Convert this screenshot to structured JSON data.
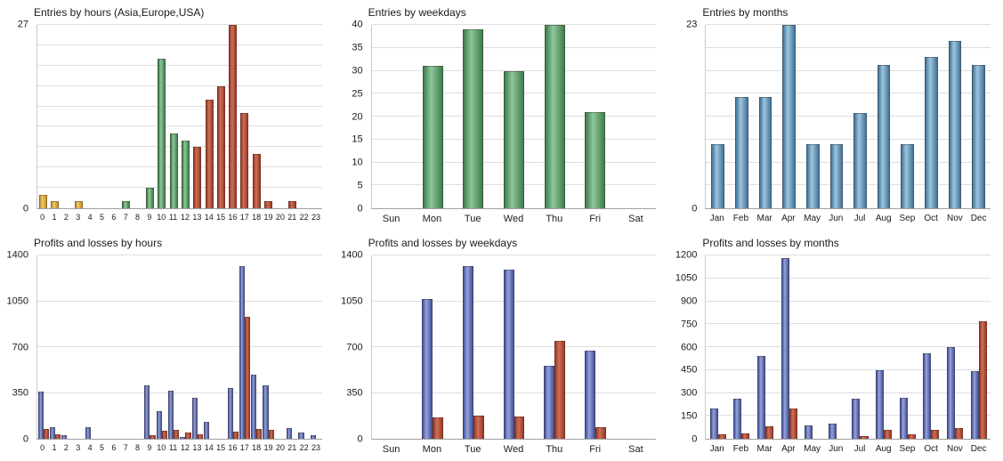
{
  "palette": {
    "asia": [
      "#c48f2c",
      "#ecc968"
    ],
    "europe": [
      "#3f7e4d",
      "#8fc79b"
    ],
    "usa": [
      "#9c3a2a",
      "#cc7058"
    ],
    "entries_blue": [
      "#44749b",
      "#9cc6dd"
    ],
    "profit": [
      "#44539f",
      "#97a3d6"
    ],
    "loss": [
      "#9c3a2a",
      "#cc7058"
    ]
  },
  "chart_data": [
    {
      "type": "bar",
      "title": "Entries by hours (Asia,Europe,USA)",
      "categories": [
        "0",
        "1",
        "2",
        "3",
        "4",
        "5",
        "6",
        "7",
        "8",
        "9",
        "10",
        "11",
        "12",
        "13",
        "14",
        "15",
        "16",
        "17",
        "18",
        "19",
        "20",
        "21",
        "22",
        "23"
      ],
      "series": [
        {
          "name": "Entries",
          "values": [
            2,
            1,
            0,
            1,
            0,
            0,
            0,
            1,
            0,
            3,
            22,
            11,
            10,
            9,
            16,
            18,
            27,
            14,
            8,
            1,
            0,
            1,
            0,
            0
          ],
          "session_map": [
            "asia",
            "asia",
            "asia",
            "asia",
            "asia",
            "asia",
            "asia",
            "europe",
            "europe",
            "europe",
            "europe",
            "europe",
            "europe",
            "usa",
            "usa",
            "usa",
            "usa",
            "usa",
            "usa",
            "usa",
            "usa",
            "usa",
            "usa",
            "usa"
          ]
        }
      ],
      "ylim": [
        0,
        27
      ],
      "yticks": [
        0,
        27
      ],
      "grid_divisions": 9,
      "bar_width": "68%",
      "xlabel_size": "9px",
      "legend": "none",
      "grid": "on"
    },
    {
      "type": "bar",
      "title": "Entries by weekdays",
      "categories": [
        "Sun",
        "Mon",
        "Tue",
        "Wed",
        "Thu",
        "Fri",
        "Sat"
      ],
      "series": [
        {
          "name": "Entries",
          "values": [
            0,
            31,
            39,
            30,
            40,
            21,
            0
          ],
          "color": "europe"
        }
      ],
      "ylim": [
        0,
        40
      ],
      "yticks": [
        0,
        5,
        10,
        15,
        20,
        25,
        30,
        35,
        40
      ],
      "grid_divisions": 8,
      "bar_width": "50%",
      "xlabel_size": "11px",
      "legend": "none",
      "grid": "on"
    },
    {
      "type": "bar",
      "title": "Entries by months",
      "categories": [
        "Jan",
        "Feb",
        "Mar",
        "Apr",
        "May",
        "Jun",
        "Jul",
        "Aug",
        "Sep",
        "Oct",
        "Nov",
        "Dec"
      ],
      "series": [
        {
          "name": "Entries",
          "values": [
            8,
            14,
            14,
            23,
            8,
            8,
            12,
            18,
            8,
            19,
            21,
            18
          ],
          "color": "entries_blue"
        }
      ],
      "ylim": [
        0,
        23
      ],
      "yticks": [
        0,
        23
      ],
      "grid_divisions": 8,
      "bar_width": "55%",
      "xlabel_size": "10px",
      "legend": "none",
      "grid": "on"
    },
    {
      "type": "bar",
      "title": "Profits and losses by hours",
      "categories": [
        "0",
        "1",
        "2",
        "3",
        "4",
        "5",
        "6",
        "7",
        "8",
        "9",
        "10",
        "11",
        "12",
        "13",
        "14",
        "15",
        "16",
        "17",
        "18",
        "19",
        "20",
        "21",
        "22",
        "23"
      ],
      "series": [
        {
          "name": "Profits",
          "values": [
            360,
            90,
            25,
            0,
            90,
            0,
            0,
            0,
            0,
            410,
            210,
            370,
            15,
            310,
            130,
            0,
            390,
            1320,
            490,
            410,
            0,
            80,
            45,
            30
          ],
          "color": "profit"
        },
        {
          "name": "Losses",
          "values": [
            75,
            35,
            0,
            0,
            0,
            0,
            0,
            0,
            0,
            25,
            60,
            65,
            50,
            35,
            0,
            0,
            55,
            930,
            75,
            65,
            0,
            0,
            0,
            0
          ],
          "color": "loss"
        }
      ],
      "ylim": [
        0,
        1400
      ],
      "yticks": [
        0,
        350,
        700,
        1050,
        1400
      ],
      "grid_divisions": 4,
      "group_bar_width": "46%",
      "xlabel_size": "9px",
      "legend": "none",
      "grid": "on"
    },
    {
      "type": "bar",
      "title": "Profits and losses by weekdays",
      "categories": [
        "Sun",
        "Mon",
        "Tue",
        "Wed",
        "Thu",
        "Fri",
        "Sat"
      ],
      "series": [
        {
          "name": "Profits",
          "values": [
            0,
            1070,
            1320,
            1290,
            560,
            670,
            0
          ],
          "color": "profit"
        },
        {
          "name": "Losses",
          "values": [
            0,
            160,
            180,
            170,
            750,
            90,
            0
          ],
          "color": "loss"
        }
      ],
      "ylim": [
        0,
        1400
      ],
      "yticks": [
        0,
        350,
        700,
        1050,
        1400
      ],
      "grid_divisions": 4,
      "group_bar_width": "26%",
      "xlabel_size": "11px",
      "legend": "none",
      "grid": "on"
    },
    {
      "type": "bar",
      "title": "Profits and losses by months",
      "categories": [
        "Jan",
        "Feb",
        "Mar",
        "Apr",
        "May",
        "Jun",
        "Jul",
        "Aug",
        "Sep",
        "Oct",
        "Nov",
        "Dec"
      ],
      "series": [
        {
          "name": "Profits",
          "values": [
            200,
            260,
            540,
            1180,
            90,
            100,
            260,
            450,
            270,
            560,
            600,
            440
          ],
          "color": "profit"
        },
        {
          "name": "Losses",
          "values": [
            30,
            35,
            80,
            200,
            0,
            0,
            15,
            60,
            30,
            60,
            70,
            770
          ],
          "color": "loss"
        }
      ],
      "ylim": [
        0,
        1200
      ],
      "yticks": [
        0,
        150,
        300,
        450,
        600,
        750,
        900,
        1050,
        1200
      ],
      "grid_divisions": 8,
      "group_bar_width": "34%",
      "xlabel_size": "10px",
      "legend": "none",
      "grid": "on"
    }
  ]
}
